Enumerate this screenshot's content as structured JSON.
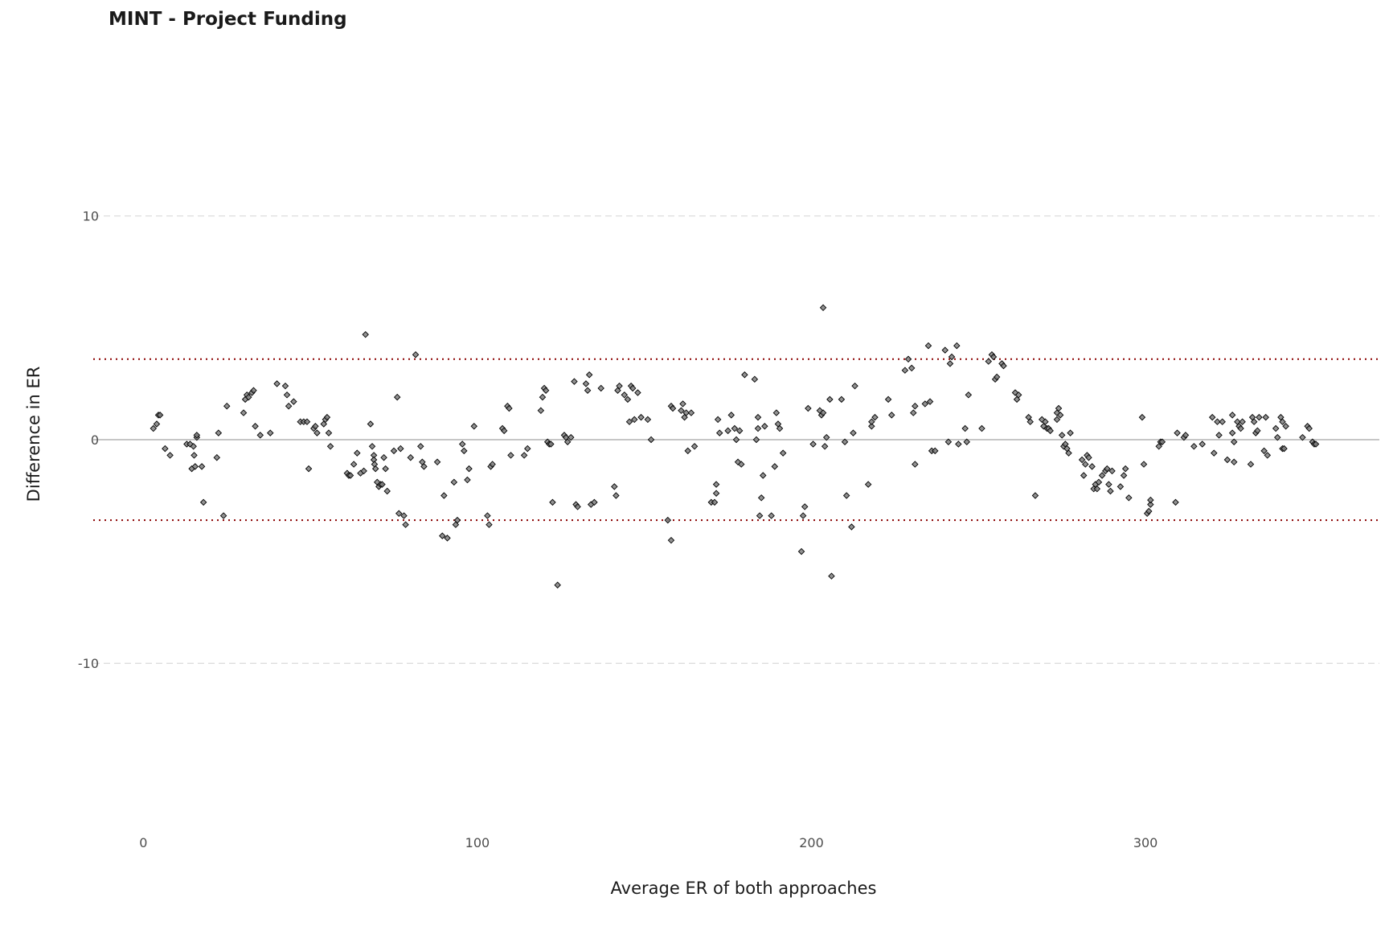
{
  "chart_data": {
    "type": "scatter",
    "title": "MINT - Project Funding",
    "xlabel": "Average ER of both approaches",
    "ylabel": "Difference in ER",
    "xlim": [
      -15,
      370
    ],
    "ylim": [
      -17,
      17.5
    ],
    "x_ticks": [
      0,
      100,
      200,
      300
    ],
    "x_tick_labels": [
      "0",
      "100",
      "200",
      "300"
    ],
    "y_ticks": [
      10,
      0,
      -10
    ],
    "y_tick_labels": [
      "10",
      "0",
      "-10"
    ],
    "grid": "horizontal dashed at major y ticks",
    "reference_lines": {
      "zero": 0,
      "upper_limit": 3.6,
      "lower_limit": -3.6
    },
    "legend": "none",
    "colors": {
      "point_fill": "#7f7f7f",
      "point_edge": "#000000",
      "limit_line": "#8b0000",
      "zero_line": "#b3b3b3",
      "grid": "#d9d9d9"
    },
    "marker": "diamond",
    "points": [
      [
        3,
        0.5
      ],
      [
        4,
        0.7
      ],
      [
        4.5,
        1.1
      ],
      [
        5,
        1.1
      ],
      [
        6.5,
        -0.4
      ],
      [
        8,
        -0.7
      ],
      [
        13,
        -0.2
      ],
      [
        14,
        -0.2
      ],
      [
        14.5,
        -1.3
      ],
      [
        15,
        -0.3
      ],
      [
        15.2,
        -0.7
      ],
      [
        15.5,
        -1.2
      ],
      [
        16,
        0.1
      ],
      [
        16,
        0.2
      ],
      [
        17.5,
        -1.2
      ],
      [
        18,
        -2.8
      ],
      [
        22,
        -0.8
      ],
      [
        22.5,
        0.3
      ],
      [
        24,
        -3.4
      ],
      [
        25,
        1.5
      ],
      [
        30,
        1.2
      ],
      [
        30.5,
        1.8
      ],
      [
        31,
        2.0
      ],
      [
        31.5,
        1.9
      ],
      [
        32.5,
        2.1
      ],
      [
        33,
        2.2
      ],
      [
        33.5,
        0.6
      ],
      [
        35,
        0.2
      ],
      [
        38,
        0.3
      ],
      [
        40,
        2.5
      ],
      [
        42.5,
        2.4
      ],
      [
        43,
        2.0
      ],
      [
        43.5,
        1.5
      ],
      [
        45,
        1.7
      ],
      [
        47,
        0.8
      ],
      [
        48,
        0.8
      ],
      [
        49,
        0.8
      ],
      [
        49.5,
        -1.3
      ],
      [
        51,
        0.5
      ],
      [
        51.5,
        0.6
      ],
      [
        52,
        0.3
      ],
      [
        54,
        0.7
      ],
      [
        54.5,
        0.9
      ],
      [
        55,
        1.0
      ],
      [
        55.5,
        0.3
      ],
      [
        56,
        -0.3
      ],
      [
        61,
        -1.5
      ],
      [
        61.5,
        -1.6
      ],
      [
        62,
        -1.6
      ],
      [
        63,
        -1.1
      ],
      [
        64,
        -0.6
      ],
      [
        65,
        -1.5
      ],
      [
        66,
        -1.4
      ],
      [
        66.5,
        4.7
      ],
      [
        68,
        0.7
      ],
      [
        68.5,
        -0.3
      ],
      [
        69,
        -0.7
      ],
      [
        69,
        -0.9
      ],
      [
        69.2,
        -1.1
      ],
      [
        69.5,
        -1.3
      ],
      [
        70,
        -1.9
      ],
      [
        70.5,
        -2.1
      ],
      [
        71,
        -2.0
      ],
      [
        71.5,
        -2.0
      ],
      [
        72,
        -0.8
      ],
      [
        72.5,
        -1.3
      ],
      [
        73,
        -2.3
      ],
      [
        75,
        -0.5
      ],
      [
        76,
        1.9
      ],
      [
        76.5,
        -3.3
      ],
      [
        77,
        -0.4
      ],
      [
        78,
        -3.4
      ],
      [
        78.5,
        -3.8
      ],
      [
        80,
        -0.8
      ],
      [
        81.5,
        3.8
      ],
      [
        83,
        -0.3
      ],
      [
        83.5,
        -1.0
      ],
      [
        84,
        -1.2
      ],
      [
        88,
        -1.0
      ],
      [
        89.5,
        -4.3
      ],
      [
        90,
        -2.5
      ],
      [
        91,
        -4.4
      ],
      [
        93,
        -1.9
      ],
      [
        93.5,
        -3.8
      ],
      [
        94,
        -3.6
      ],
      [
        95.5,
        -0.2
      ],
      [
        96,
        -0.5
      ],
      [
        97,
        -1.8
      ],
      [
        97.5,
        -1.3
      ],
      [
        99,
        0.6
      ],
      [
        103,
        -3.4
      ],
      [
        103.5,
        -3.8
      ],
      [
        104,
        -1.2
      ],
      [
        104.5,
        -1.1
      ],
      [
        107.5,
        0.5
      ],
      [
        108,
        0.4
      ],
      [
        109,
        1.5
      ],
      [
        109.5,
        1.4
      ],
      [
        110,
        -0.7
      ],
      [
        114,
        -0.7
      ],
      [
        115,
        -0.4
      ],
      [
        119,
        1.3
      ],
      [
        119.5,
        1.9
      ],
      [
        120,
        2.3
      ],
      [
        120.5,
        2.2
      ],
      [
        121,
        -0.1
      ],
      [
        121.5,
        -0.2
      ],
      [
        122,
        -0.2
      ],
      [
        122.5,
        -2.8
      ],
      [
        124,
        -6.5
      ],
      [
        126,
        0.2
      ],
      [
        126.5,
        0.1
      ],
      [
        127,
        -0.1
      ],
      [
        128,
        0.1
      ],
      [
        129,
        2.6
      ],
      [
        129.5,
        -2.9
      ],
      [
        130,
        -3.0
      ],
      [
        132.5,
        2.5
      ],
      [
        133,
        2.2
      ],
      [
        133.5,
        2.9
      ],
      [
        134,
        -2.9
      ],
      [
        135,
        -2.8
      ],
      [
        137,
        2.3
      ],
      [
        141,
        -2.1
      ],
      [
        141.5,
        -2.5
      ],
      [
        142,
        2.2
      ],
      [
        142.5,
        2.4
      ],
      [
        144,
        2.0
      ],
      [
        145,
        1.8
      ],
      [
        145.5,
        0.8
      ],
      [
        146,
        2.4
      ],
      [
        146.5,
        2.3
      ],
      [
        147,
        0.9
      ],
      [
        148,
        2.1
      ],
      [
        149,
        1.0
      ],
      [
        151,
        0.9
      ],
      [
        152,
        0.0
      ],
      [
        157,
        -3.6
      ],
      [
        158,
        -4.5
      ],
      [
        158,
        1.5
      ],
      [
        158.5,
        1.4
      ],
      [
        161,
        1.3
      ],
      [
        161.5,
        1.6
      ],
      [
        162,
        1.0
      ],
      [
        162.5,
        1.2
      ],
      [
        163,
        -0.5
      ],
      [
        164,
        1.2
      ],
      [
        165,
        -0.3
      ],
      [
        170,
        -2.8
      ],
      [
        171,
        -2.8
      ],
      [
        171.5,
        -2.4
      ],
      [
        171.5,
        -2.0
      ],
      [
        172,
        0.9
      ],
      [
        172.5,
        0.3
      ],
      [
        175,
        0.4
      ],
      [
        176,
        1.1
      ],
      [
        177,
        0.5
      ],
      [
        177.5,
        0.0
      ],
      [
        178,
        -1.0
      ],
      [
        178.5,
        0.4
      ],
      [
        179,
        -1.1
      ],
      [
        180,
        2.9
      ],
      [
        183,
        2.7
      ],
      [
        183.5,
        0.0
      ],
      [
        184,
        1.0
      ],
      [
        184,
        0.5
      ],
      [
        184.5,
        -3.4
      ],
      [
        185,
        -2.6
      ],
      [
        185.5,
        -1.6
      ],
      [
        186,
        0.6
      ],
      [
        188,
        -3.4
      ],
      [
        189,
        -1.2
      ],
      [
        189.5,
        1.2
      ],
      [
        190,
        0.7
      ],
      [
        190.5,
        0.5
      ],
      [
        191.5,
        -0.6
      ],
      [
        197,
        -5.0
      ],
      [
        197.5,
        -3.4
      ],
      [
        198,
        -3.0
      ],
      [
        199,
        1.4
      ],
      [
        200.5,
        -0.2
      ],
      [
        202.5,
        1.3
      ],
      [
        203,
        1.1
      ],
      [
        203.5,
        1.2
      ],
      [
        203.5,
        5.9
      ],
      [
        204,
        -0.3
      ],
      [
        204.5,
        0.1
      ],
      [
        205.5,
        1.8
      ],
      [
        206,
        -6.1
      ],
      [
        209,
        1.8
      ],
      [
        210,
        -0.1
      ],
      [
        210.5,
        -2.5
      ],
      [
        212,
        -3.9
      ],
      [
        212.5,
        0.3
      ],
      [
        213,
        2.4
      ],
      [
        217,
        -2.0
      ],
      [
        218,
        0.6
      ],
      [
        218,
        0.8
      ],
      [
        219,
        1.0
      ],
      [
        223,
        1.8
      ],
      [
        224,
        1.1
      ],
      [
        228,
        3.1
      ],
      [
        229,
        3.6
      ],
      [
        230,
        3.2
      ],
      [
        230.5,
        1.2
      ],
      [
        231,
        1.5
      ],
      [
        231,
        -1.1
      ],
      [
        234,
        1.6
      ],
      [
        235,
        4.2
      ],
      [
        235.5,
        1.7
      ],
      [
        236,
        -0.5
      ],
      [
        237,
        -0.5
      ],
      [
        240,
        4.0
      ],
      [
        241,
        -0.1
      ],
      [
        241.5,
        3.4
      ],
      [
        242,
        3.7
      ],
      [
        243.5,
        4.2
      ],
      [
        244,
        -0.2
      ],
      [
        246,
        0.5
      ],
      [
        246.5,
        -0.1
      ],
      [
        247,
        2.0
      ],
      [
        251,
        0.5
      ],
      [
        253,
        3.5
      ],
      [
        254,
        3.8
      ],
      [
        254.5,
        3.7
      ],
      [
        255,
        2.7
      ],
      [
        255.5,
        2.8
      ],
      [
        257,
        3.4
      ],
      [
        257.5,
        3.3
      ],
      [
        261,
        2.1
      ],
      [
        261.5,
        1.8
      ],
      [
        262,
        2.0
      ],
      [
        265,
        1.0
      ],
      [
        265.5,
        0.8
      ],
      [
        267,
        -2.5
      ],
      [
        269,
        0.9
      ],
      [
        269.5,
        0.6
      ],
      [
        270,
        0.8
      ],
      [
        270.5,
        0.5
      ],
      [
        271,
        0.5
      ],
      [
        271.5,
        0.4
      ],
      [
        273.5,
        0.9
      ],
      [
        273.5,
        1.2
      ],
      [
        274,
        1.4
      ],
      [
        274.5,
        1.1
      ],
      [
        275,
        0.2
      ],
      [
        275.5,
        -0.3
      ],
      [
        276,
        -0.2
      ],
      [
        276.5,
        -0.4
      ],
      [
        277,
        -0.6
      ],
      [
        277.5,
        0.3
      ],
      [
        281,
        -0.9
      ],
      [
        281.5,
        -1.6
      ],
      [
        282,
        -1.1
      ],
      [
        282.5,
        -0.7
      ],
      [
        283,
        -0.8
      ],
      [
        284,
        -1.2
      ],
      [
        284.5,
        -2.2
      ],
      [
        285,
        -2.0
      ],
      [
        285.5,
        -2.2
      ],
      [
        286,
        -1.9
      ],
      [
        287,
        -1.6
      ],
      [
        288,
        -1.4
      ],
      [
        288.5,
        -1.3
      ],
      [
        289,
        -2.0
      ],
      [
        289.5,
        -2.3
      ],
      [
        290,
        -1.4
      ],
      [
        292.5,
        -2.1
      ],
      [
        293.5,
        -1.6
      ],
      [
        294,
        -1.3
      ],
      [
        295,
        -2.6
      ],
      [
        299,
        1.0
      ],
      [
        299.5,
        -1.1
      ],
      [
        300.5,
        -3.3
      ],
      [
        301,
        -3.2
      ],
      [
        301.5,
        -2.9
      ],
      [
        301.5,
        -2.7
      ],
      [
        304,
        -0.3
      ],
      [
        304.5,
        -0.1
      ],
      [
        305,
        -0.1
      ],
      [
        309,
        -2.8
      ],
      [
        309.5,
        0.3
      ],
      [
        311.5,
        0.1
      ],
      [
        312,
        0.2
      ],
      [
        314.5,
        -0.3
      ],
      [
        317,
        -0.2
      ],
      [
        320,
        1.0
      ],
      [
        320.5,
        -0.6
      ],
      [
        321.5,
        0.8
      ],
      [
        322,
        0.2
      ],
      [
        323,
        0.8
      ],
      [
        324.5,
        -0.9
      ],
      [
        326,
        1.1
      ],
      [
        326,
        0.3
      ],
      [
        326.5,
        -1.0
      ],
      [
        326.5,
        -0.1
      ],
      [
        327.5,
        0.8
      ],
      [
        328,
        0.6
      ],
      [
        328.5,
        0.5
      ],
      [
        329,
        0.8
      ],
      [
        331.5,
        -1.1
      ],
      [
        332,
        1.0
      ],
      [
        332.5,
        0.8
      ],
      [
        333,
        0.3
      ],
      [
        333.5,
        0.4
      ],
      [
        334,
        1.0
      ],
      [
        335.5,
        -0.5
      ],
      [
        336,
        1.0
      ],
      [
        336.5,
        -0.7
      ],
      [
        339,
        0.5
      ],
      [
        339.5,
        0.1
      ],
      [
        340.5,
        1.0
      ],
      [
        341,
        0.8
      ],
      [
        341,
        -0.4
      ],
      [
        341.5,
        -0.4
      ],
      [
        342,
        0.6
      ],
      [
        347,
        0.1
      ],
      [
        348.5,
        0.6
      ],
      [
        349,
        0.5
      ],
      [
        350,
        -0.1
      ],
      [
        350.5,
        -0.2
      ],
      [
        351,
        -0.2
      ]
    ]
  }
}
